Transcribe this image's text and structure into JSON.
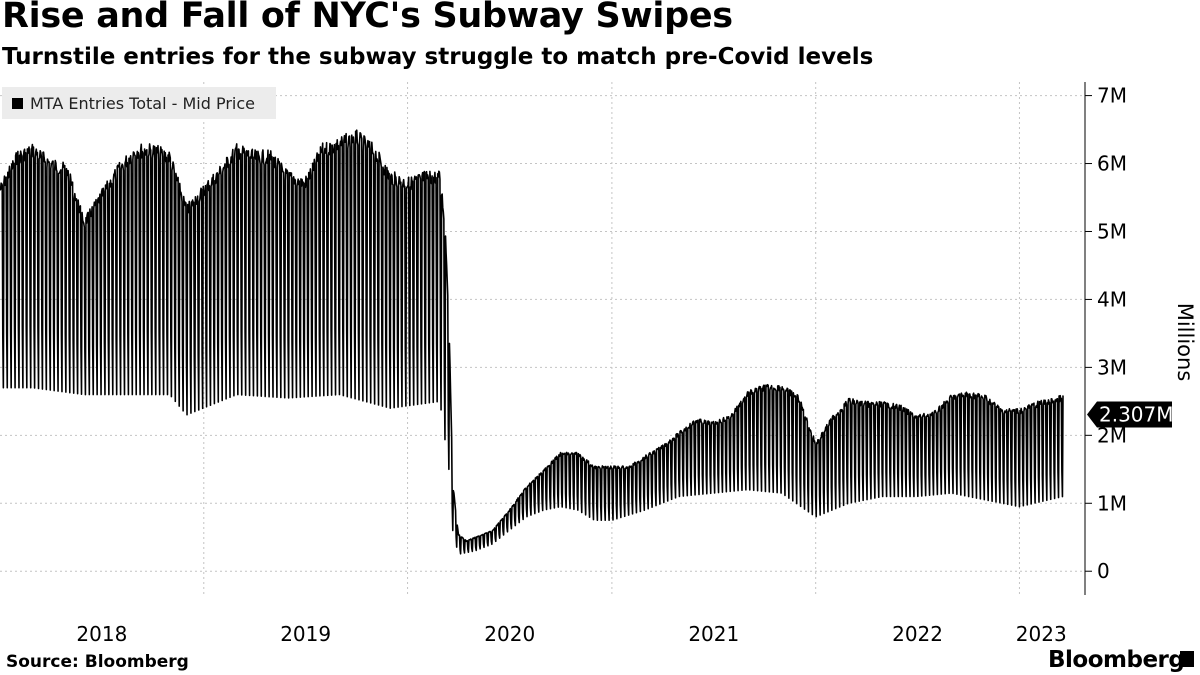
{
  "header": {
    "title": "Rise and Fall of NYC's Subway Swipes",
    "subtitle": "Turnstile entries for the subway struggle to match pre-Covid levels"
  },
  "footer": {
    "source": "Source: Bloomberg",
    "brand": "Bloomberg"
  },
  "chart_data": {
    "type": "line",
    "title": "Rise and Fall of NYC's Subway Swipes",
    "subtitle": "Turnstile entries for the subway struggle to match pre-Covid levels",
    "ylabel": "Millions",
    "ylim": [
      -0.35,
      7.2
    ],
    "y_ticks": [
      {
        "value": 0,
        "label": "0"
      },
      {
        "value": 1,
        "label": "1M"
      },
      {
        "value": 2,
        "label": "2M"
      },
      {
        "value": 3,
        "label": "3M"
      },
      {
        "value": 4,
        "label": "4M"
      },
      {
        "value": 5,
        "label": "5M"
      },
      {
        "value": 6,
        "label": "6M"
      },
      {
        "value": 7,
        "label": "7M"
      }
    ],
    "x_range": [
      "2018-01-01",
      "2023-03-20"
    ],
    "x_ticks": [
      "2018",
      "2019",
      "2020",
      "2021",
      "2022",
      "2023"
    ],
    "grid": "vertical dotted at year boundaries, horizontal dotted at each y tick",
    "legend": {
      "position": "top-left",
      "entries": [
        "MTA Entries Total - Mid Price"
      ]
    },
    "last_value_label": "2.307M",
    "last_value": 2.307,
    "colors": {
      "line": "#000000",
      "legend_bg": "#ececec",
      "grid": "#c4c4c4"
    },
    "series": [
      {
        "name": "MTA Entries Total - Mid Price",
        "note_shape": "daily data; upper envelope = weekday ridership, lower envelope = weekend ridership",
        "upper": [
          [
            "2018-01-01",
            5.7
          ],
          [
            "2018-02-01",
            6.2
          ],
          [
            "2018-03-01",
            6.3
          ],
          [
            "2018-04-01",
            6.1
          ],
          [
            "2018-05-01",
            6.0
          ],
          [
            "2018-06-01",
            5.2
          ],
          [
            "2018-07-01",
            5.6
          ],
          [
            "2018-08-01",
            6.0
          ],
          [
            "2018-09-01",
            6.3
          ],
          [
            "2018-10-01",
            6.3
          ],
          [
            "2018-11-01",
            6.2
          ],
          [
            "2018-12-01",
            5.4
          ],
          [
            "2019-01-01",
            5.7
          ],
          [
            "2019-02-01",
            6.0
          ],
          [
            "2019-03-01",
            6.3
          ],
          [
            "2019-04-01",
            6.2
          ],
          [
            "2019-05-01",
            6.2
          ],
          [
            "2019-06-01",
            5.9
          ],
          [
            "2019-07-01",
            5.8
          ],
          [
            "2019-08-01",
            6.3
          ],
          [
            "2019-09-01",
            6.4
          ],
          [
            "2019-10-01",
            6.5
          ],
          [
            "2019-11-01",
            6.3
          ],
          [
            "2019-12-01",
            5.9
          ],
          [
            "2020-01-01",
            5.8
          ],
          [
            "2020-02-01",
            5.9
          ],
          [
            "2020-02-28",
            5.9
          ],
          [
            "2020-03-08",
            5.2
          ],
          [
            "2020-03-15",
            3.8
          ],
          [
            "2020-03-22",
            1.3
          ],
          [
            "2020-04-01",
            0.55
          ],
          [
            "2020-04-15",
            0.45
          ],
          [
            "2020-05-01",
            0.5
          ],
          [
            "2020-06-01",
            0.6
          ],
          [
            "2020-07-01",
            0.9
          ],
          [
            "2020-08-01",
            1.25
          ],
          [
            "2020-09-01",
            1.5
          ],
          [
            "2020-10-01",
            1.75
          ],
          [
            "2020-11-01",
            1.75
          ],
          [
            "2020-12-01",
            1.55
          ],
          [
            "2021-01-01",
            1.55
          ],
          [
            "2021-02-01",
            1.55
          ],
          [
            "2021-03-01",
            1.7
          ],
          [
            "2021-04-01",
            1.85
          ],
          [
            "2021-05-01",
            2.05
          ],
          [
            "2021-06-01",
            2.25
          ],
          [
            "2021-07-01",
            2.2
          ],
          [
            "2021-08-01",
            2.3
          ],
          [
            "2021-09-01",
            2.65
          ],
          [
            "2021-10-01",
            2.75
          ],
          [
            "2021-11-01",
            2.75
          ],
          [
            "2021-12-01",
            2.6
          ],
          [
            "2022-01-01",
            1.9
          ],
          [
            "2022-02-01",
            2.3
          ],
          [
            "2022-03-01",
            2.55
          ],
          [
            "2022-04-01",
            2.5
          ],
          [
            "2022-05-01",
            2.5
          ],
          [
            "2022-06-01",
            2.45
          ],
          [
            "2022-07-01",
            2.3
          ],
          [
            "2022-08-01",
            2.35
          ],
          [
            "2022-09-01",
            2.6
          ],
          [
            "2022-10-01",
            2.65
          ],
          [
            "2022-11-01",
            2.6
          ],
          [
            "2022-12-01",
            2.4
          ],
          [
            "2023-01-01",
            2.4
          ],
          [
            "2023-02-01",
            2.5
          ],
          [
            "2023-03-01",
            2.55
          ],
          [
            "2023-03-20",
            2.6
          ]
        ],
        "lower": [
          [
            "2018-01-01",
            2.7
          ],
          [
            "2018-03-01",
            2.7
          ],
          [
            "2018-06-01",
            2.6
          ],
          [
            "2018-08-01",
            2.6
          ],
          [
            "2018-11-01",
            2.6
          ],
          [
            "2018-12-01",
            2.3
          ],
          [
            "2019-03-01",
            2.6
          ],
          [
            "2019-06-01",
            2.55
          ],
          [
            "2019-09-01",
            2.6
          ],
          [
            "2019-12-01",
            2.4
          ],
          [
            "2020-02-28",
            2.5
          ],
          [
            "2020-03-15",
            1.5
          ],
          [
            "2020-03-22",
            0.6
          ],
          [
            "2020-04-01",
            0.25
          ],
          [
            "2020-05-01",
            0.3
          ],
          [
            "2020-06-01",
            0.4
          ],
          [
            "2020-07-01",
            0.6
          ],
          [
            "2020-08-01",
            0.8
          ],
          [
            "2020-09-01",
            0.9
          ],
          [
            "2020-10-01",
            0.95
          ],
          [
            "2020-11-01",
            0.9
          ],
          [
            "2020-12-01",
            0.75
          ],
          [
            "2021-01-01",
            0.75
          ],
          [
            "2021-03-01",
            0.9
          ],
          [
            "2021-05-01",
            1.1
          ],
          [
            "2021-07-01",
            1.15
          ],
          [
            "2021-09-01",
            1.2
          ],
          [
            "2021-11-01",
            1.15
          ],
          [
            "2022-01-01",
            0.8
          ],
          [
            "2022-03-01",
            1.0
          ],
          [
            "2022-05-01",
            1.1
          ],
          [
            "2022-07-01",
            1.1
          ],
          [
            "2022-09-01",
            1.15
          ],
          [
            "2022-11-01",
            1.05
          ],
          [
            "2023-01-01",
            0.95
          ],
          [
            "2023-03-20",
            1.1
          ]
        ]
      }
    ]
  }
}
